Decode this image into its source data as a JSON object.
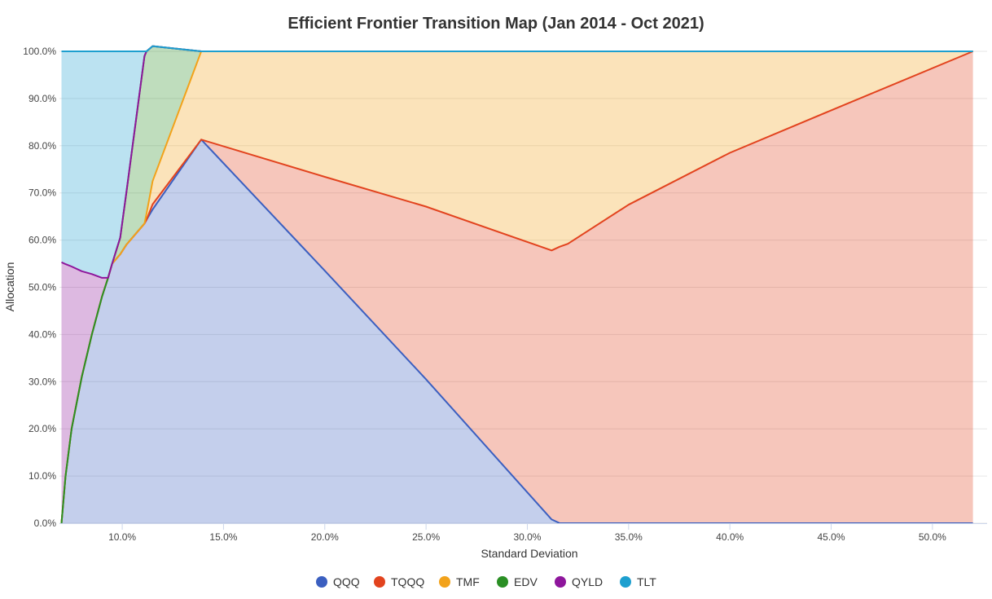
{
  "chart_data": {
    "type": "area",
    "stacked": true,
    "title": "Efficient Frontier Transition Map (Jan 2014 - Oct 2021)",
    "xlabel": "Standard Deviation",
    "ylabel": "Allocation",
    "xlim": [
      6.9,
      52.7
    ],
    "ylim": [
      0,
      100
    ],
    "x_ticks": [
      "10.0%",
      "15.0%",
      "20.0%",
      "25.0%",
      "30.0%",
      "35.0%",
      "40.0%",
      "45.0%",
      "50.0%"
    ],
    "y_ticks": [
      "0.0%",
      "10.0%",
      "20.0%",
      "30.0%",
      "40.0%",
      "50.0%",
      "60.0%",
      "70.0%",
      "80.0%",
      "90.0%",
      "100.0%"
    ],
    "grid": true,
    "legend_position": "bottom",
    "x": [
      7.0,
      7.2,
      7.5,
      8.0,
      8.5,
      9.0,
      9.3,
      9.5,
      9.9,
      10.2,
      11.1,
      11.2,
      11.5,
      13.9,
      20.0,
      25.0,
      31.2,
      31.6,
      32.0,
      35.0,
      40.0,
      45.0,
      52.0
    ],
    "series": [
      {
        "name": "QQQ",
        "color": "#3b5fc0",
        "values": [
          0,
          10,
          20,
          31,
          40,
          48,
          52,
          55,
          57,
          59,
          63.5,
          64.3,
          66.5,
          81.3,
          53.5,
          30.5,
          0.8,
          0,
          0,
          0,
          0,
          0,
          0
        ]
      },
      {
        "name": "TQQQ",
        "color": "#e2431e",
        "values": [
          0,
          0,
          0,
          0,
          0,
          0,
          0,
          0,
          0,
          0,
          0,
          0,
          1.1,
          0,
          19.9,
          36.6,
          57.0,
          58.6,
          59.2,
          67.5,
          78.5,
          87.5,
          100
        ]
      },
      {
        "name": "TMF",
        "color": "#f2a21a",
        "values": [
          0,
          0,
          0,
          0,
          0,
          0,
          0,
          0,
          0,
          0,
          0,
          1.3,
          4.9,
          18.7,
          26.6,
          32.9,
          42.2,
          41.4,
          40.8,
          32.5,
          21.5,
          12.5,
          0
        ]
      },
      {
        "name": "EDV",
        "color": "#2a8f24",
        "values": [
          0,
          0,
          0,
          0,
          0,
          0,
          0,
          0,
          3.5,
          11,
          35.5,
          34.4,
          28.6,
          0,
          0,
          0,
          0,
          0,
          0,
          0,
          0,
          0,
          0
        ]
      },
      {
        "name": "QYLD",
        "color": "#8e169c",
        "values": [
          55.3,
          44.9,
          34.4,
          22.4,
          12.8,
          4.0,
          0,
          0,
          0,
          0,
          0,
          0,
          0,
          0,
          0,
          0,
          0,
          0,
          0,
          0,
          0,
          0,
          0
        ]
      },
      {
        "name": "TLT",
        "color": "#1d9fcf",
        "values": [
          44.7,
          45.1,
          45.6,
          46.6,
          47.2,
          48.0,
          48.0,
          45.0,
          39.5,
          30.0,
          1.0,
          0,
          0,
          0,
          0,
          0,
          0,
          0,
          0,
          0,
          0,
          0,
          0
        ]
      }
    ]
  }
}
